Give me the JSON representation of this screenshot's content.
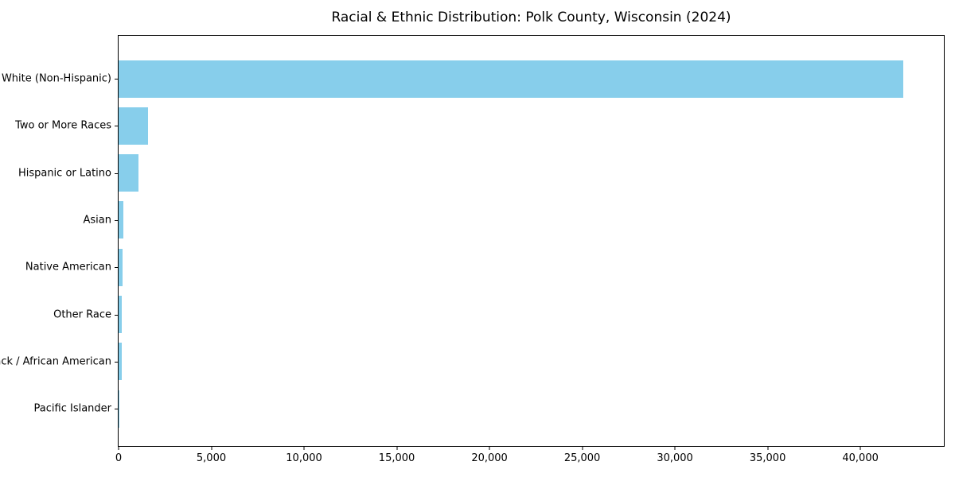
{
  "title": "Racial & Ethnic Distribution: Polk County, Wisconsin (2024)",
  "chart_data": {
    "type": "bar",
    "orientation": "horizontal",
    "title": "Racial & Ethnic Distribution: Polk County, Wisconsin (2024)",
    "categories": [
      "White (Non-Hispanic)",
      "Two or More Races",
      "Hispanic or Latino",
      "Asian",
      "Native American",
      "Other Race",
      "Black / African American",
      "Pacific Islander"
    ],
    "values": [
      42300,
      1580,
      1060,
      245,
      215,
      190,
      170,
      15
    ],
    "xlabel": "",
    "ylabel": "",
    "xlim": [
      0,
      44500
    ],
    "xticks": [
      0,
      5000,
      10000,
      15000,
      20000,
      25000,
      30000,
      35000,
      40000
    ],
    "xtick_labels": [
      "0",
      "5,000",
      "10,000",
      "15,000",
      "20,000",
      "25,000",
      "30,000",
      "35,000",
      "40,000"
    ],
    "bar_color": "#87CEEB",
    "axis_color": "#000000",
    "background_color": "#FFFFFF",
    "grid": false,
    "legend": "none"
  }
}
